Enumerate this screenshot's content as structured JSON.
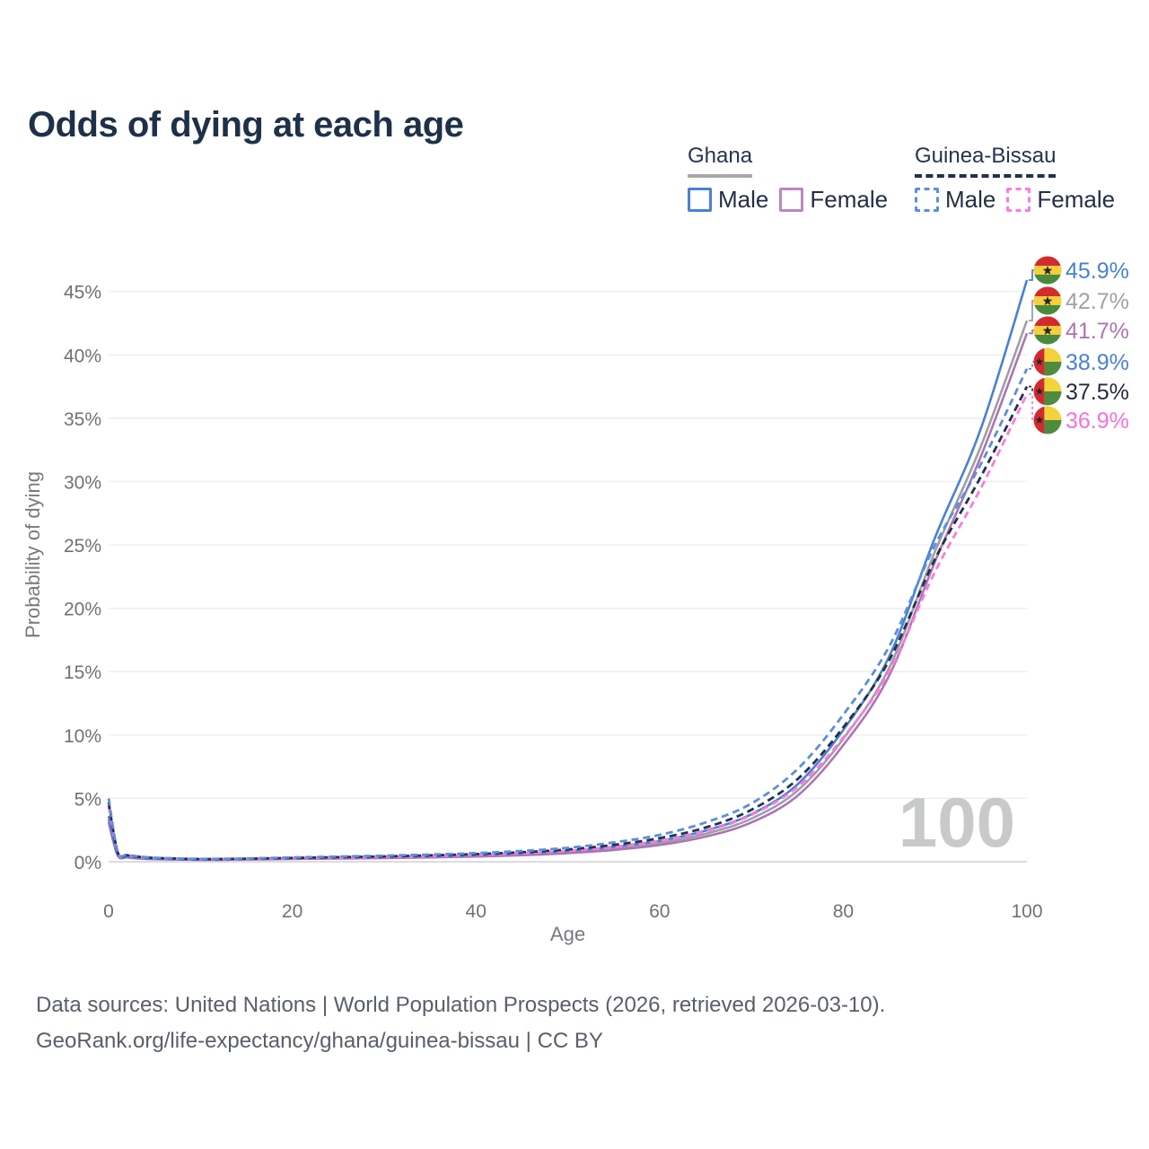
{
  "title": "Odds of dying at each age",
  "watermark": "100",
  "legend": {
    "groups": [
      {
        "label": "Ghana",
        "line_style": "solid",
        "underline_color": "#a8a8a8",
        "items": [
          {
            "label": "Male",
            "color": "#4a80d5",
            "dashed": false
          },
          {
            "label": "Female",
            "color": "#bd85c0",
            "dashed": false
          }
        ]
      },
      {
        "label": "Guinea-Bissau",
        "line_style": "dashed",
        "underline_color": "#22304d",
        "items": [
          {
            "label": "Male",
            "color": "#5b8ede",
            "dashed": true
          },
          {
            "label": "Female",
            "color": "#fb7ae0",
            "dashed": true
          }
        ]
      }
    ]
  },
  "footer": {
    "line1": "Data sources: United Nations | World Population Prospects (2026, retrieved 2026-03-10).",
    "line2": "GeoRank.org/life-expectancy/ghana/guinea-bissau | CC BY"
  },
  "flags": {
    "ghana": {
      "red": "#d12b2e",
      "gold": "#f7ce3c",
      "green": "#4a8a3f",
      "star": "#23262b"
    },
    "guinea_bissau": {
      "red": "#d12b2e",
      "gold": "#f2d33c",
      "green": "#4f8b3e",
      "star": "#23262b"
    }
  },
  "chart_data": {
    "type": "line",
    "title": "Odds of dying at each age",
    "xlabel": "Age",
    "ylabel": "Probability of dying",
    "x_ticks": [
      0,
      20,
      40,
      60,
      80,
      100
    ],
    "y_ticks_percent": [
      0,
      5,
      10,
      15,
      20,
      25,
      30,
      35,
      40,
      45
    ],
    "xlim": [
      0,
      100
    ],
    "ylim_percent": [
      0,
      47
    ],
    "grid": "horizontal",
    "legend_position": "top-right",
    "watermark_age": "100",
    "ages": [
      0,
      1,
      2,
      3,
      5,
      10,
      15,
      20,
      25,
      30,
      35,
      40,
      45,
      50,
      55,
      60,
      65,
      70,
      75,
      80,
      85,
      90,
      95,
      100
    ],
    "series": [
      {
        "id": "ghana-male",
        "name": "Ghana Male",
        "country": "Ghana",
        "sex": "male",
        "flag": "ghana",
        "color": "#4a80d5",
        "label_color": "#4a80d5",
        "dashed": false,
        "end_value": 45.9,
        "end_label": "45.9%",
        "values": [
          3.6,
          0.55,
          0.4,
          0.32,
          0.24,
          0.18,
          0.21,
          0.28,
          0.33,
          0.38,
          0.44,
          0.52,
          0.65,
          0.85,
          1.18,
          1.65,
          2.45,
          3.75,
          6.1,
          10.4,
          16.2,
          25.6,
          34.2,
          45.9
        ]
      },
      {
        "id": "ghana-combined",
        "name": "Ghana",
        "country": "Ghana",
        "sex": "combined",
        "flag": "ghana",
        "color": "#9d9fa3",
        "label_color": "#9fa1a5",
        "dashed": false,
        "end_value": 42.7,
        "end_label": "42.7%",
        "values": [
          3.35,
          0.51,
          0.37,
          0.3,
          0.22,
          0.17,
          0.19,
          0.25,
          0.29,
          0.34,
          0.39,
          0.47,
          0.59,
          0.77,
          1.05,
          1.48,
          2.2,
          3.4,
          5.6,
          9.7,
          15.3,
          24.5,
          32.8,
          42.7
        ]
      },
      {
        "id": "ghana-female",
        "name": "Ghana Female",
        "country": "Ghana",
        "sex": "female",
        "flag": "ghana",
        "color": "#ad74b4",
        "label_color": "#ad74b4",
        "dashed": false,
        "end_value": 41.7,
        "end_label": "41.7%",
        "values": [
          3.1,
          0.47,
          0.34,
          0.27,
          0.2,
          0.15,
          0.17,
          0.21,
          0.25,
          0.29,
          0.34,
          0.41,
          0.52,
          0.68,
          0.93,
          1.32,
          1.98,
          3.1,
          5.2,
          9.2,
          14.7,
          23.7,
          32.0,
          41.7
        ]
      },
      {
        "id": "guinea-bissau-male",
        "name": "Guinea-Bissau Male",
        "country": "Guinea-Bissau",
        "sex": "male",
        "flag": "guinea_bissau",
        "color": "#5b8ede",
        "label_color": "#4a80d5",
        "dashed": true,
        "end_value": 38.9,
        "end_label": "38.9%",
        "values": [
          5.0,
          0.78,
          0.56,
          0.44,
          0.32,
          0.23,
          0.26,
          0.34,
          0.41,
          0.48,
          0.57,
          0.68,
          0.85,
          1.1,
          1.52,
          2.12,
          3.1,
          4.6,
          7.3,
          11.6,
          17.0,
          25.0,
          31.4,
          38.9
        ]
      },
      {
        "id": "guinea-bissau-combined",
        "name": "Guinea-Bissau",
        "country": "Guinea-Bissau",
        "sex": "combined",
        "flag": "guinea_bissau",
        "color": "#24314e",
        "label_color": "#262c38",
        "dashed": true,
        "end_value": 37.5,
        "end_label": "37.5%",
        "values": [
          4.7,
          0.73,
          0.52,
          0.41,
          0.3,
          0.21,
          0.24,
          0.3,
          0.36,
          0.42,
          0.5,
          0.6,
          0.75,
          0.97,
          1.33,
          1.86,
          2.7,
          4.1,
          6.5,
          10.6,
          15.9,
          23.9,
          30.4,
          37.5
        ]
      },
      {
        "id": "guinea-bissau-female",
        "name": "Guinea-Bissau Female",
        "country": "Guinea-Bissau",
        "sex": "female",
        "flag": "guinea_bissau",
        "color": "#fb7ae0",
        "label_color": "#fb6fd8",
        "dashed": true,
        "end_value": 36.9,
        "end_label": "36.9%",
        "values": [
          4.4,
          0.68,
          0.49,
          0.38,
          0.28,
          0.2,
          0.22,
          0.27,
          0.32,
          0.37,
          0.44,
          0.53,
          0.66,
          0.86,
          1.17,
          1.63,
          2.4,
          3.7,
          5.9,
          9.8,
          15.0,
          22.9,
          29.5,
          36.9
        ]
      }
    ]
  }
}
